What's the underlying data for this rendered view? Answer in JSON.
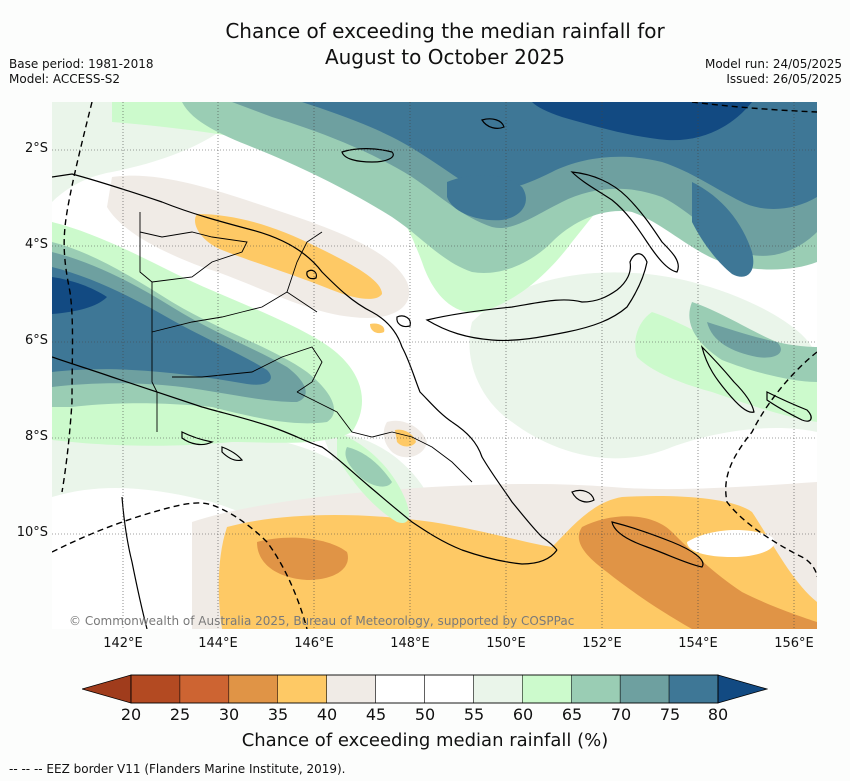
{
  "title_line1": "Chance of exceeding the median rainfall for",
  "title_line2": "August to October 2025",
  "meta_left": {
    "base_period": "Base period: 1981-2018",
    "model": "Model: ACCESS-S2"
  },
  "meta_right": {
    "model_run": "Model run: 24/05/2025",
    "issued": "Issued: 26/05/2025"
  },
  "lat_labels": [
    "2°S",
    "4°S",
    "6°S",
    "8°S",
    "10°S"
  ],
  "lon_labels": [
    "142°E",
    "144°E",
    "146°E",
    "148°E",
    "150°E",
    "152°E",
    "154°E",
    "156°E"
  ],
  "copyright": "© Commonwealth of Australia 2025, Bureau of Meteorology, supported by COSPPac",
  "colorbar": {
    "ticks": [
      "20",
      "25",
      "30",
      "35",
      "40",
      "45",
      "50",
      "55",
      "60",
      "65",
      "70",
      "75",
      "80"
    ],
    "colors": [
      "#b34a22",
      "#cd6432",
      "#e09446",
      "#fec965",
      "#f0ebe6",
      "#ffffff",
      "#ffffff",
      "#eaf5ea",
      "#ccfacc",
      "#9acdb4",
      "#6ea0a0",
      "#3e7796"
    ],
    "under_color": "#a03c1c",
    "over_color": "#124a82",
    "title": "Chance of exceeding median rainfall (%)"
  },
  "footnote": "-- -- -- EEZ border V11 (Flanders Marine Institute, 2019)."
}
